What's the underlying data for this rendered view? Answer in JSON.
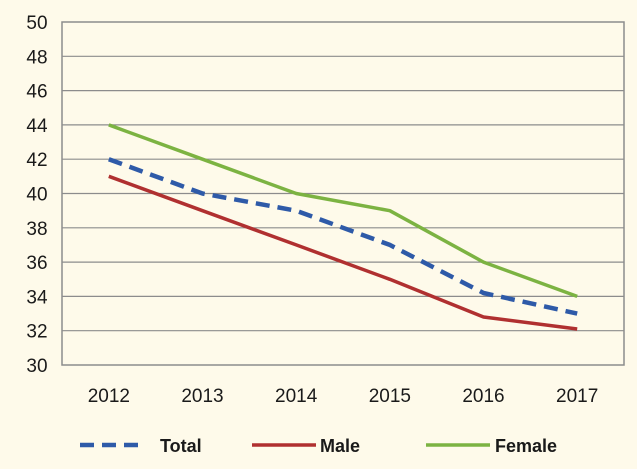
{
  "chart_data": {
    "type": "line",
    "title": "",
    "xlabel": "",
    "ylabel": "",
    "categories": [
      "2012",
      "2013",
      "2014",
      "2015",
      "2016",
      "2017"
    ],
    "ylim": [
      30,
      50
    ],
    "yticks": [
      30,
      32,
      34,
      36,
      38,
      40,
      42,
      44,
      46,
      48,
      50
    ],
    "grid": true,
    "legend_position": "bottom",
    "series": [
      {
        "name": "Total",
        "values": [
          42,
          40,
          39,
          37,
          34.2,
          33
        ],
        "color": "#2e5aa8",
        "style": "dashed"
      },
      {
        "name": "Male",
        "values": [
          41,
          39,
          37,
          35,
          32.8,
          32.1
        ],
        "color": "#b03030",
        "style": "solid"
      },
      {
        "name": "Female",
        "values": [
          44,
          42,
          40,
          39,
          36,
          34
        ],
        "color": "#7cb342",
        "style": "solid"
      }
    ]
  }
}
